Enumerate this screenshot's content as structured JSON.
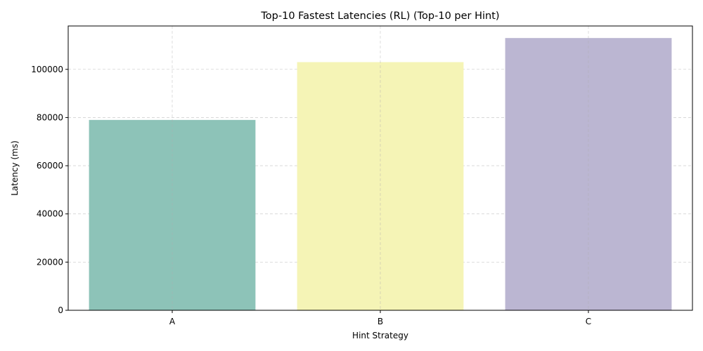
{
  "chart_data": {
    "type": "bar",
    "title": "Top-10 Fastest Latencies (RL) (Top-10 per Hint)",
    "xlabel": "Hint Strategy",
    "ylabel": "Latency (ms)",
    "categories": [
      "A",
      "B",
      "C"
    ],
    "values": [
      79000,
      103000,
      113000
    ],
    "colors": [
      "#8dc3b8",
      "#f5f4b6",
      "#bbb6d2"
    ],
    "ylim": [
      0,
      118000
    ],
    "yticks": [
      0,
      20000,
      40000,
      60000,
      80000,
      100000
    ],
    "grid": true
  }
}
